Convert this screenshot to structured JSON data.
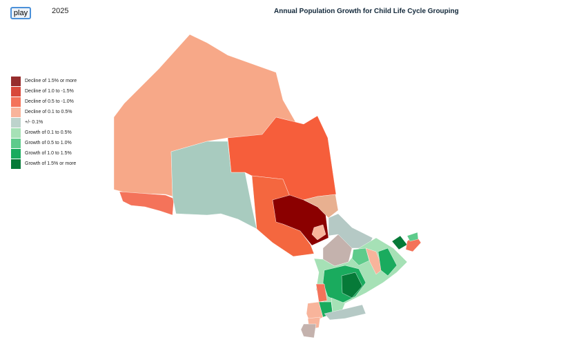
{
  "controls": {
    "play": "play",
    "year": "2025"
  },
  "title": "Annual Population Growth for Child Life Cycle Grouping",
  "legend": [
    {
      "label": "Decline of 1.5% or more",
      "color": "#962d2d"
    },
    {
      "label": "Decline of 1.0 to -1.5%",
      "color": "#d8483a"
    },
    {
      "label": "Decline of 0.5 to -1.0%",
      "color": "#f4735a"
    },
    {
      "label": "Decline of 0.1 to 0.5%",
      "color": "#f8b49b"
    },
    {
      "label": "+/- 0.1%",
      "color": "#bdd3cc"
    },
    {
      "label": "Growth of 0.1 to 0.5%",
      "color": "#a6e1b6"
    },
    {
      "label": "Growth of 0.5 to 1.0%",
      "color": "#5ecb8b"
    },
    {
      "label": "Growth of 1.0 to 1.5%",
      "color": "#1aab5e"
    },
    {
      "label": "Growth of 1.5% or more",
      "color": "#067a38"
    }
  ]
}
